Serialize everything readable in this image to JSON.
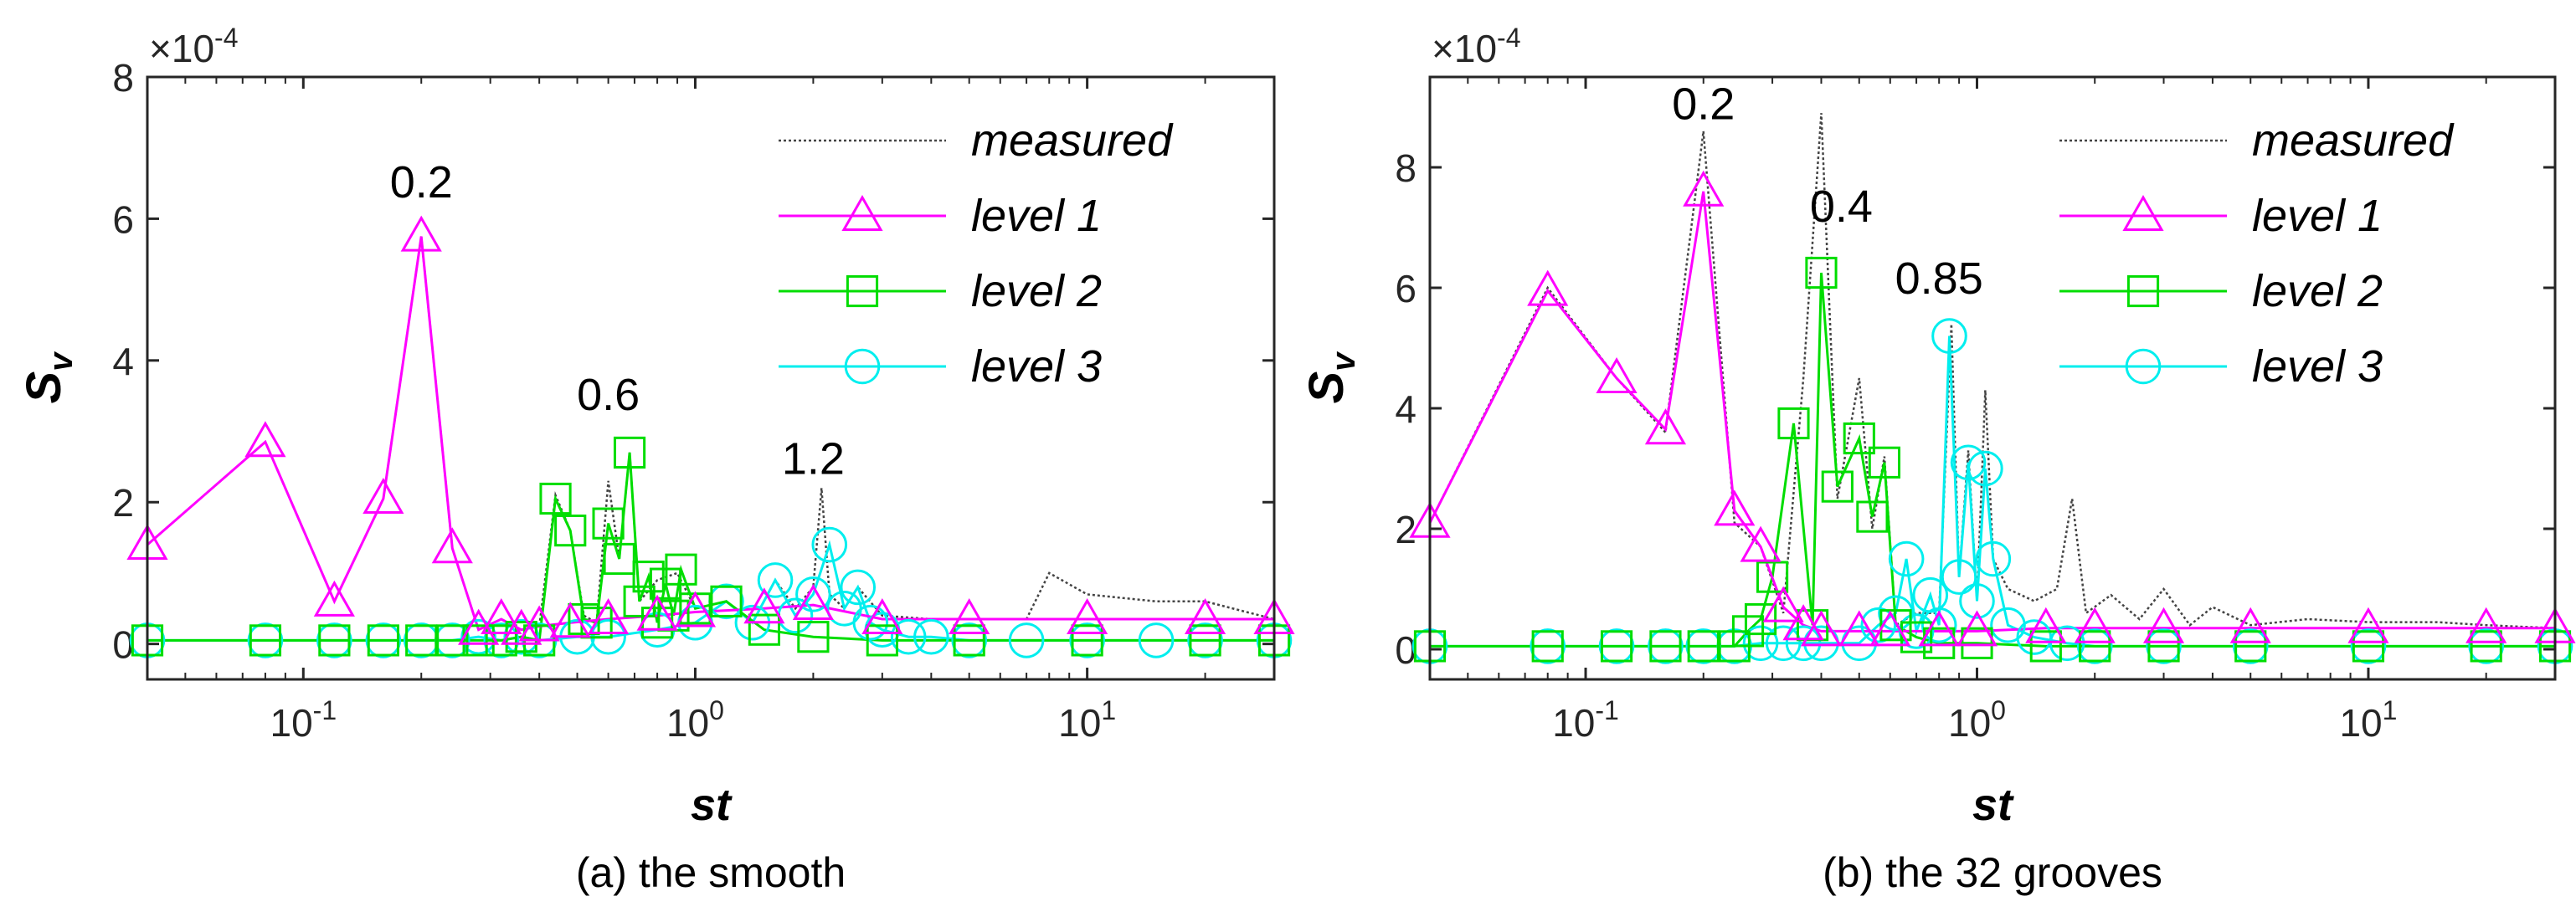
{
  "chart_data": [
    {
      "type": "line",
      "panel": "a",
      "caption": "(a) the smooth",
      "xlabel": "st",
      "ylabel": "S",
      "ylabel_sub": "v",
      "exponent": "×10-4",
      "xscale": "log",
      "xlim": [
        0.04,
        30
      ],
      "ylim": [
        -0.5,
        8
      ],
      "yticks": [
        0,
        2,
        4,
        6,
        8
      ],
      "xticks": [
        0.1,
        1,
        10
      ],
      "xtick_labels": [
        "10-1",
        "100",
        "101"
      ],
      "legend": [
        "measured",
        "level 1",
        "level 2",
        "level 3"
      ],
      "legend_position": "top-right",
      "annotations": [
        {
          "text": "0.2",
          "x": 0.2,
          "y": 6.3
        },
        {
          "text": "0.6",
          "x": 0.6,
          "y": 3.3
        },
        {
          "text": "1.2",
          "x": 2.0,
          "y": 2.4
        }
      ],
      "series": [
        {
          "name": "level 1",
          "x": [
            0.04,
            0.08,
            0.12,
            0.16,
            0.2,
            0.24,
            0.28,
            0.32,
            0.36,
            0.4,
            0.48,
            0.6,
            0.8,
            1.0,
            1.5,
            2.0,
            3.0,
            5.0,
            10,
            20,
            30
          ],
          "y": [
            1.4,
            2.85,
            0.6,
            2.05,
            5.75,
            1.35,
            0.2,
            0.35,
            0.2,
            0.25,
            0.3,
            0.35,
            0.4,
            0.45,
            0.5,
            0.55,
            0.35,
            0.35,
            0.35,
            0.35,
            0.35
          ]
        },
        {
          "name": "level 2",
          "x": [
            0.04,
            0.08,
            0.12,
            0.16,
            0.2,
            0.24,
            0.28,
            0.32,
            0.36,
            0.4,
            0.44,
            0.48,
            0.52,
            0.56,
            0.6,
            0.64,
            0.68,
            0.72,
            0.76,
            0.8,
            0.84,
            0.88,
            0.92,
            1.0,
            1.2,
            1.5,
            2.0,
            3.0,
            5.0,
            10,
            20,
            30
          ],
          "y": [
            0.05,
            0.05,
            0.05,
            0.05,
            0.05,
            0.05,
            0.05,
            0.05,
            0.1,
            0.05,
            2.05,
            1.6,
            0.35,
            0.3,
            1.7,
            1.2,
            2.7,
            0.6,
            0.95,
            0.3,
            0.85,
            0.4,
            1.05,
            0.5,
            0.6,
            0.2,
            0.1,
            0.05,
            0.05,
            0.05,
            0.05,
            0.05
          ]
        },
        {
          "name": "level 3",
          "x": [
            0.04,
            0.08,
            0.12,
            0.16,
            0.2,
            0.24,
            0.28,
            0.32,
            0.36,
            0.4,
            0.5,
            0.6,
            0.8,
            1.0,
            1.2,
            1.4,
            1.6,
            1.8,
            2.0,
            2.2,
            2.4,
            2.6,
            2.8,
            3.0,
            3.5,
            4,
            5,
            7,
            10,
            15,
            20,
            30
          ],
          "y": [
            0.05,
            0.05,
            0.05,
            0.05,
            0.05,
            0.05,
            0.1,
            0.05,
            0.1,
            0.05,
            0.1,
            0.1,
            0.2,
            0.3,
            0.6,
            0.3,
            0.9,
            0.4,
            0.7,
            1.4,
            0.5,
            0.8,
            0.3,
            0.2,
            0.1,
            0.1,
            0.05,
            0.05,
            0.05,
            0.05,
            0.05,
            0.05
          ]
        },
        {
          "name": "measured",
          "x": [
            0.04,
            0.08,
            0.12,
            0.16,
            0.2,
            0.24,
            0.28,
            0.32,
            0.36,
            0.4,
            0.44,
            0.48,
            0.52,
            0.56,
            0.6,
            0.64,
            0.68,
            0.72,
            0.8,
            0.9,
            1.0,
            1.2,
            1.4,
            1.6,
            1.8,
            2.0,
            2.1,
            2.2,
            2.4,
            2.6,
            3.0,
            4.0,
            5.0,
            7.0,
            8.0,
            10,
            15,
            20,
            30
          ],
          "y": [
            1.4,
            2.85,
            0.6,
            2.05,
            5.75,
            1.35,
            0.2,
            0.35,
            0.2,
            0.25,
            2.1,
            1.6,
            0.4,
            0.3,
            2.3,
            1.2,
            2.7,
            0.6,
            0.9,
            1.0,
            0.5,
            0.6,
            0.3,
            0.9,
            0.5,
            0.8,
            2.2,
            0.7,
            0.5,
            0.8,
            0.4,
            0.35,
            0.35,
            0.35,
            1.0,
            0.7,
            0.6,
            0.6,
            0.35
          ]
        }
      ]
    },
    {
      "type": "line",
      "panel": "b",
      "caption": "(b) the 32 grooves",
      "xlabel": "st",
      "ylabel": "S",
      "ylabel_sub": "v",
      "exponent": "×10-4",
      "xscale": "log",
      "xlim": [
        0.04,
        30
      ],
      "ylim": [
        -0.5,
        9.5
      ],
      "yticks": [
        0,
        2,
        4,
        6,
        8
      ],
      "xticks": [
        0.1,
        1,
        10
      ],
      "xtick_labels": [
        "10-1",
        "100",
        "101"
      ],
      "legend": [
        "measured",
        "level 1",
        "level 2",
        "level 3"
      ],
      "legend_position": "top-right",
      "annotations": [
        {
          "text": "0.2",
          "x": 0.2,
          "y": 8.8
        },
        {
          "text": "0.4",
          "x": 0.45,
          "y": 7.1
        },
        {
          "text": "0.85",
          "x": 0.8,
          "y": 5.9
        }
      ],
      "series": [
        {
          "name": "level 1",
          "x": [
            0.04,
            0.08,
            0.12,
            0.16,
            0.2,
            0.24,
            0.28,
            0.32,
            0.36,
            0.4,
            0.5,
            0.6,
            0.8,
            1.0,
            1.5,
            2.0,
            3.0,
            5.0,
            10,
            20,
            30
          ],
          "y": [
            2.1,
            5.95,
            4.5,
            3.65,
            7.6,
            2.3,
            1.7,
            0.7,
            0.4,
            0.3,
            0.3,
            0.3,
            0.3,
            0.3,
            0.35,
            0.35,
            0.35,
            0.35,
            0.35,
            0.35,
            0.35
          ]
        },
        {
          "name": "level 2",
          "x": [
            0.04,
            0.08,
            0.12,
            0.16,
            0.2,
            0.24,
            0.26,
            0.28,
            0.3,
            0.34,
            0.38,
            0.4,
            0.44,
            0.5,
            0.54,
            0.58,
            0.62,
            0.7,
            0.8,
            1.0,
            1.5,
            2.0,
            3.0,
            5.0,
            10,
            20,
            30
          ],
          "y": [
            0.05,
            0.05,
            0.05,
            0.05,
            0.05,
            0.05,
            0.3,
            0.5,
            1.2,
            3.75,
            0.4,
            6.25,
            2.7,
            3.5,
            2.2,
            3.1,
            0.4,
            0.2,
            0.1,
            0.1,
            0.05,
            0.05,
            0.05,
            0.05,
            0.05,
            0.05,
            0.05
          ]
        },
        {
          "name": "level 3",
          "x": [
            0.04,
            0.08,
            0.12,
            0.16,
            0.2,
            0.24,
            0.28,
            0.32,
            0.36,
            0.4,
            0.5,
            0.56,
            0.62,
            0.66,
            0.7,
            0.76,
            0.8,
            0.85,
            0.9,
            0.95,
            1.0,
            1.05,
            1.1,
            1.2,
            1.4,
            1.7,
            2.0,
            3.0,
            5.0,
            10,
            20,
            30
          ],
          "y": [
            0.05,
            0.05,
            0.05,
            0.05,
            0.05,
            0.05,
            0.1,
            0.1,
            0.1,
            0.1,
            0.1,
            0.4,
            0.6,
            1.5,
            0.3,
            0.9,
            0.4,
            5.2,
            1.2,
            3.1,
            0.8,
            3.0,
            1.5,
            0.4,
            0.2,
            0.1,
            0.05,
            0.05,
            0.05,
            0.05,
            0.05,
            0.05
          ]
        },
        {
          "name": "measured",
          "x": [
            0.04,
            0.08,
            0.12,
            0.16,
            0.2,
            0.24,
            0.28,
            0.32,
            0.36,
            0.4,
            0.44,
            0.5,
            0.54,
            0.58,
            0.62,
            0.7,
            0.8,
            0.86,
            0.9,
            0.95,
            1.0,
            1.05,
            1.1,
            1.2,
            1.4,
            1.6,
            1.75,
            1.9,
            2.2,
            2.6,
            3.0,
            3.5,
            4,
            5,
            7,
            10,
            15,
            20,
            30
          ],
          "y": [
            2.1,
            6.0,
            4.5,
            3.6,
            8.6,
            2.1,
            1.7,
            0.6,
            4.5,
            8.9,
            2.5,
            4.5,
            2.0,
            3.2,
            0.4,
            0.6,
            0.6,
            5.4,
            1.2,
            3.3,
            0.8,
            4.3,
            1.5,
            1.0,
            0.8,
            1.0,
            2.5,
            0.6,
            0.9,
            0.5,
            1.0,
            0.4,
            0.7,
            0.4,
            0.5,
            0.45,
            0.45,
            0.4,
            0.35
          ]
        }
      ]
    }
  ],
  "colors": {
    "level1": "#ff00ff",
    "level2": "#00dd00",
    "level3": "#00eeee",
    "measured": "#444444",
    "axis": "#262626",
    "text": "#000000"
  }
}
